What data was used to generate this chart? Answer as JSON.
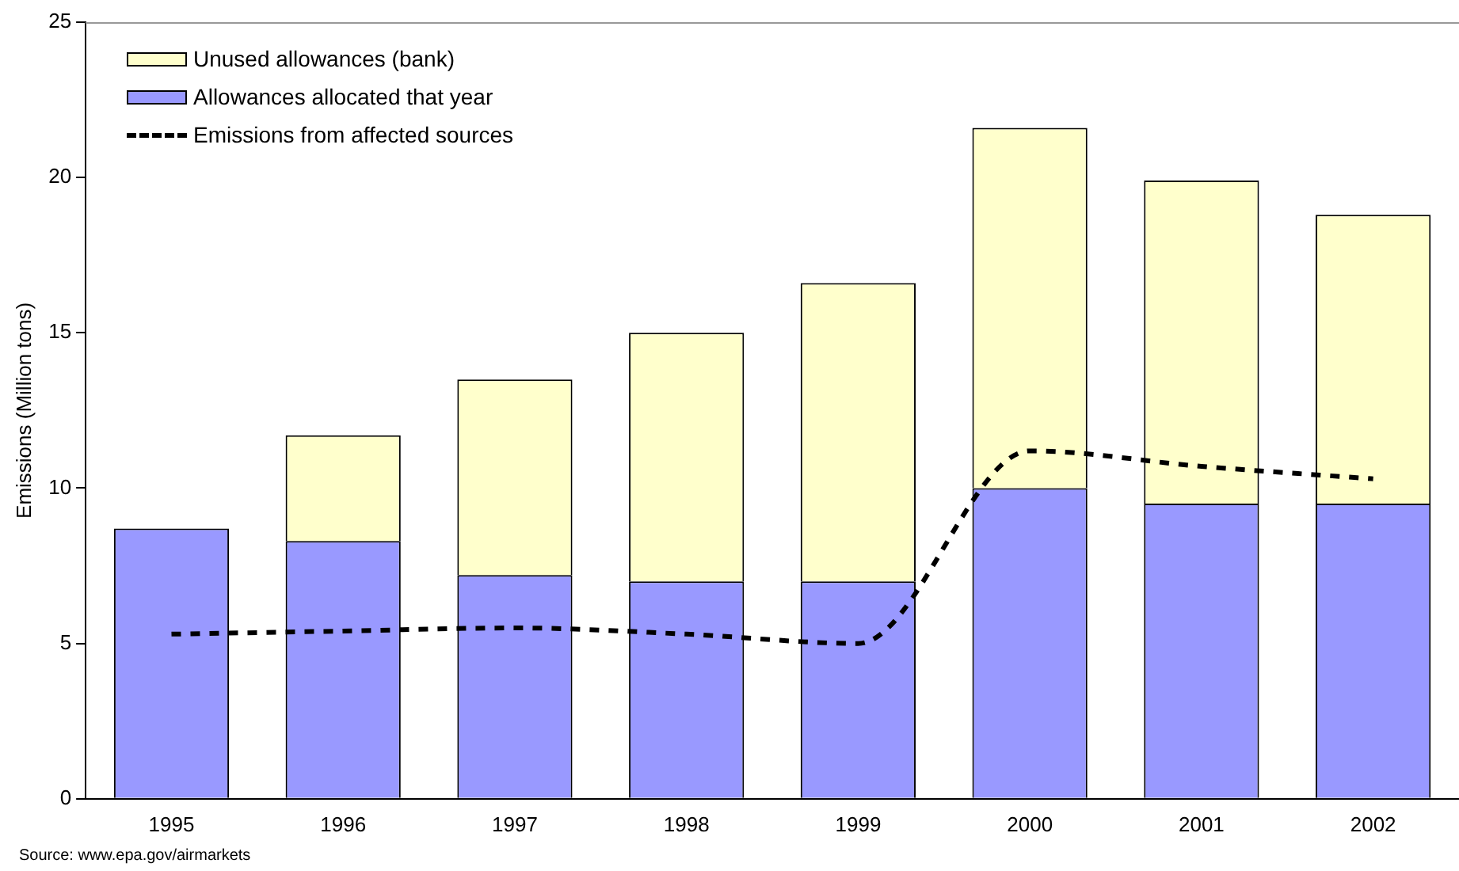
{
  "chart_data": {
    "type": "bar",
    "stacked": true,
    "ylabel": "Emissions (Million tons)",
    "categories": [
      "1995",
      "1996",
      "1997",
      "1998",
      "1999",
      "2000",
      "2001",
      "2002"
    ],
    "series": [
      {
        "name": "Allowances allocated that year",
        "color": "#9999ff",
        "values": [
          8.7,
          8.3,
          7.2,
          7.0,
          7.0,
          10.0,
          9.5,
          9.5
        ]
      },
      {
        "name": "Unused allowances (bank)",
        "color": "#ffffcc",
        "values": [
          null,
          3.4,
          6.3,
          8.0,
          9.6,
          11.6,
          10.4,
          9.3
        ]
      },
      {
        "name": "Emissions from affected sources",
        "type": "line",
        "color": "#000000",
        "line_style": "dashed",
        "marker": "none",
        "values": [
          5.3,
          5.4,
          5.5,
          5.3,
          5.0,
          11.2,
          10.7,
          10.3
        ]
      }
    ],
    "ylim": [
      0,
      25
    ],
    "yticks": [
      0,
      5,
      10,
      15,
      20,
      25
    ],
    "grid": false,
    "legend": "top left",
    "annotations": [
      "Source: www.epa.gov/airmarkets"
    ]
  }
}
